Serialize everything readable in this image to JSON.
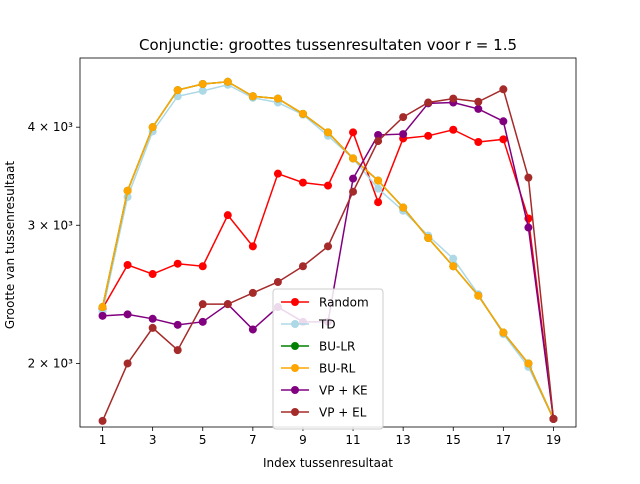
{
  "chart_data": {
    "type": "line",
    "title": "Conjunctie: groottes tussenresultaten voor r = 1.5",
    "xlabel": "Index tussenresultaat",
    "ylabel": "Grootte van tussenresultaat",
    "yscale": "log",
    "xlim": [
      0.1,
      19.9
    ],
    "ylim": [
      1660,
      4900
    ],
    "grid": false,
    "legend_position": "lower-center",
    "xticks": [
      1,
      3,
      5,
      7,
      9,
      11,
      13,
      15,
      17,
      19
    ],
    "yticks": [
      {
        "value": 2000,
        "label": "2 × 10³"
      },
      {
        "value": 3000,
        "label": "3 × 10³"
      },
      {
        "value": 4000,
        "label": "4 × 10³"
      }
    ],
    "x": [
      1,
      2,
      3,
      4,
      5,
      6,
      7,
      8,
      9,
      10,
      11,
      12,
      13,
      14,
      15,
      16,
      17,
      18,
      19
    ],
    "series": [
      {
        "name": "Random",
        "color": "#ff0000",
        "values": [
          2350,
          2670,
          2600,
          2680,
          2660,
          3090,
          2820,
          3490,
          3400,
          3370,
          3940,
          3210,
          3870,
          3900,
          3970,
          3830,
          3860,
          3060,
          1700
        ]
      },
      {
        "name": "TD",
        "color": "#add8e6",
        "values": [
          2330,
          3260,
          3950,
          4380,
          4450,
          4530,
          4360,
          4300,
          4150,
          3900,
          3650,
          3340,
          3130,
          2910,
          2720,
          2450,
          2180,
          1980,
          1700
        ]
      },
      {
        "name": "BU-LR",
        "color": "#008000",
        "values": [
          2360,
          3320,
          4000,
          4460,
          4540,
          4570,
          4380,
          4350,
          4160,
          3940,
          3650,
          3420,
          3160,
          2890,
          2660,
          2440,
          2190,
          2000,
          1700
        ]
      },
      {
        "name": "BU-RL",
        "color": "#ffa500",
        "values": [
          2360,
          3320,
          4000,
          4460,
          4540,
          4570,
          4380,
          4350,
          4160,
          3940,
          3650,
          3420,
          3160,
          2890,
          2660,
          2440,
          2190,
          2000,
          1700
        ]
      },
      {
        "name": "VP + KE",
        "color": "#800080",
        "values": [
          2300,
          2310,
          2280,
          2240,
          2260,
          2380,
          2210,
          2360,
          2260,
          2260,
          3440,
          3910,
          3920,
          4290,
          4300,
          4220,
          4070,
          2980,
          1700
        ]
      },
      {
        "name": "VP + EL",
        "color": "#a52a2a",
        "values": [
          1690,
          2000,
          2220,
          2080,
          2380,
          2380,
          2460,
          2540,
          2660,
          2820,
          3310,
          3840,
          4120,
          4300,
          4350,
          4310,
          4470,
          3450,
          1700
        ]
      }
    ]
  }
}
